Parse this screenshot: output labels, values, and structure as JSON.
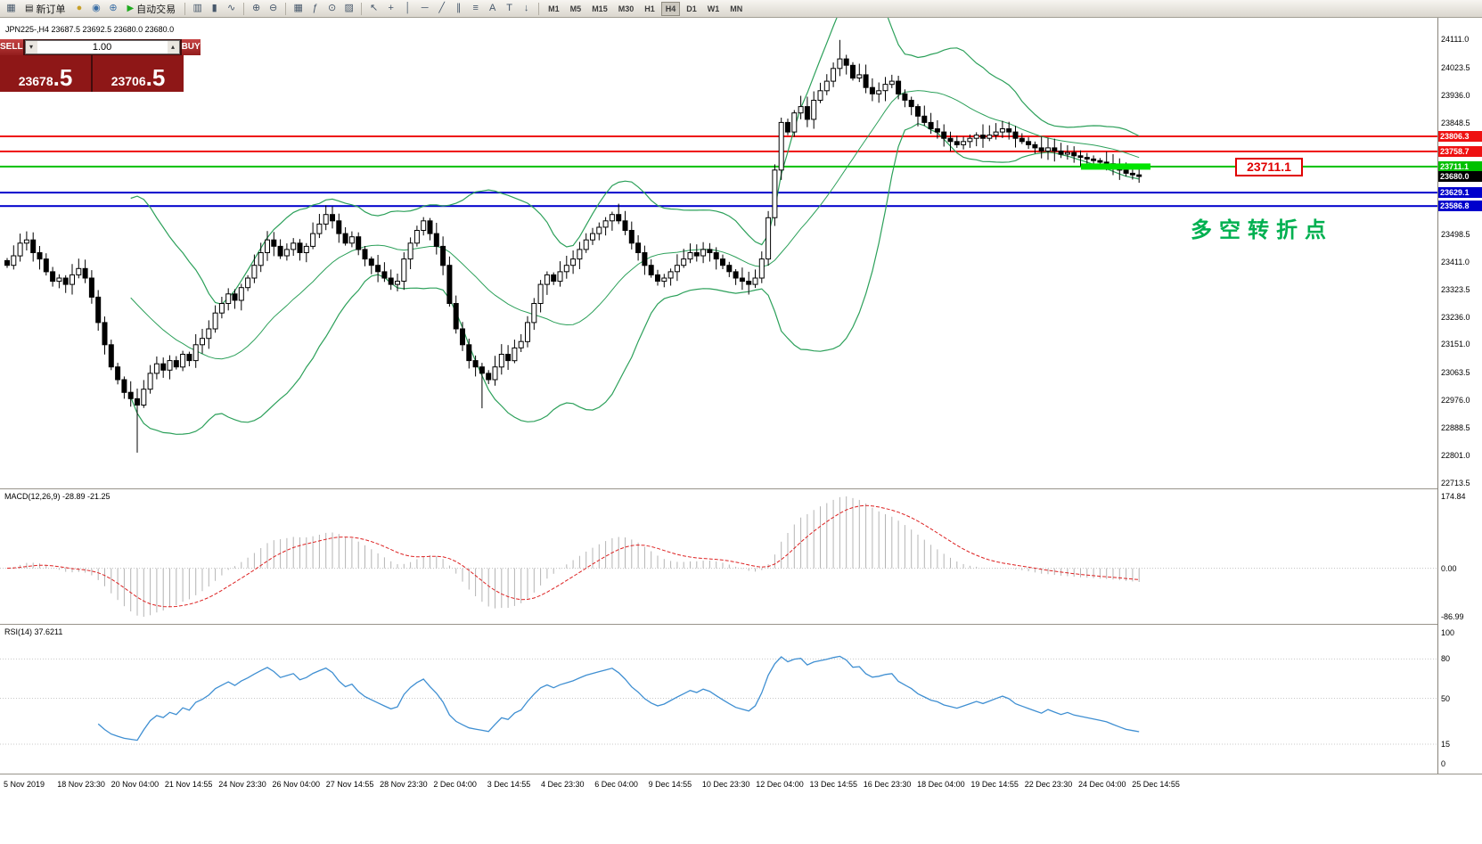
{
  "toolbar": {
    "items": [
      {
        "type": "icon",
        "name": "market-watch-icon",
        "glyph": "▦"
      },
      {
        "type": "button",
        "name": "new-order-button",
        "glyph": "▤",
        "label": "新订单"
      },
      {
        "type": "icon",
        "name": "history-center-icon",
        "glyph": "●",
        "glyph_color": "#c8a028"
      },
      {
        "type": "icon",
        "name": "profile-icon",
        "glyph": "◉",
        "glyph_color": "#3a6ea5"
      },
      {
        "type": "icon",
        "name": "community-icon",
        "glyph": "⊕",
        "glyph_color": "#3a6ea5"
      },
      {
        "type": "button",
        "name": "autotrade-button",
        "glyph": "▶",
        "glyph_color": "#1faa1f",
        "label": "自动交易"
      },
      {
        "type": "sep"
      },
      {
        "type": "icon",
        "name": "bar-chart-icon",
        "glyph": "▥"
      },
      {
        "type": "icon",
        "name": "candlestick-chart-icon",
        "glyph": "▮"
      },
      {
        "type": "icon",
        "name": "line-chart-icon",
        "glyph": "∿"
      },
      {
        "type": "sep"
      },
      {
        "type": "icon",
        "name": "zoom-in-icon",
        "glyph": "⊕"
      },
      {
        "type": "icon",
        "name": "zoom-out-icon",
        "glyph": "⊖"
      },
      {
        "type": "sep"
      },
      {
        "type": "icon",
        "name": "tile-windows-icon",
        "glyph": "▦"
      },
      {
        "type": "icon",
        "name": "indicators-icon",
        "glyph": "ƒ"
      },
      {
        "type": "icon",
        "name": "periods-icon",
        "glyph": "⊙"
      },
      {
        "type": "icon",
        "name": "templates-icon",
        "glyph": "▨"
      },
      {
        "type": "sep"
      },
      {
        "type": "icon",
        "name": "cursor-icon",
        "glyph": "↖"
      },
      {
        "type": "icon",
        "name": "crosshair-icon",
        "glyph": "+"
      },
      {
        "type": "icon",
        "name": "vertical-line-icon",
        "glyph": "│"
      },
      {
        "type": "icon",
        "name": "horizontal-line-icon",
        "glyph": "─"
      },
      {
        "type": "icon",
        "name": "trendline-icon",
        "glyph": "╱"
      },
      {
        "type": "icon",
        "name": "equidistant-channel-icon",
        "glyph": "∥"
      },
      {
        "type": "icon",
        "name": "fibonacci-icon",
        "glyph": "≡"
      },
      {
        "type": "icon",
        "name": "text-icon",
        "glyph": "A"
      },
      {
        "type": "icon",
        "name": "text-label-icon",
        "glyph": "T"
      },
      {
        "type": "icon",
        "name": "arrows-icon",
        "glyph": "↓"
      },
      {
        "type": "sep"
      }
    ],
    "timeframes": [
      "M1",
      "M5",
      "M15",
      "M30",
      "H1",
      "H4",
      "D1",
      "W1",
      "MN"
    ],
    "active_timeframe": "H4"
  },
  "chart_header": {
    "text": "JPN225-,H4  23687.5 23692.5 23680.0 23680.0"
  },
  "trade_panel": {
    "sell_label": "SELL",
    "buy_label": "BUY",
    "volume": "1.00",
    "vol_down_glyph": "▾",
    "vol_up_glyph": "▴",
    "sell_price_main": "23678",
    "sell_price_big": ".5",
    "buy_price_main": "23706",
    "buy_price_big": ".5"
  },
  "levels": [
    {
      "label": "23806.3",
      "price": 23806.3,
      "color": "#ee1111"
    },
    {
      "label": "23758.7",
      "price": 23758.7,
      "color": "#ee1111"
    },
    {
      "label": "23711.1",
      "price": 23711.1,
      "color": "#00c000"
    },
    {
      "label": "23629.1",
      "price": 23629.1,
      "color": "#0000cc"
    },
    {
      "label": "23586.8",
      "price": 23586.8,
      "color": "#0000cc"
    }
  ],
  "current_price": {
    "label": "23680.0",
    "price": 23680.0,
    "color": "#000000"
  },
  "callout": {
    "text": "23711.1",
    "price": 23711.1
  },
  "annotation": {
    "text": "多空转折点"
  },
  "price_axis": {
    "labels": [
      24111.0,
      24023.5,
      23936.0,
      23848.5,
      23498.5,
      23411.0,
      23323.5,
      23236.0,
      23151.0,
      23063.5,
      22976.0,
      22888.5,
      22801.0,
      22713.5
    ]
  },
  "macd_panel": {
    "title": "MACD(12,26,9) -28.89 -21.25",
    "axis": [
      "174.84",
      "0.00",
      "-86.99"
    ]
  },
  "rsi_panel": {
    "title": "RSI(14) 37.6211",
    "axis": [
      100,
      80,
      50,
      15,
      0
    ],
    "levels": [
      80,
      50,
      15
    ]
  },
  "time_axis": [
    "5 Nov 2019",
    "18 Nov 23:30",
    "20 Nov 04:00",
    "21 Nov 14:55",
    "24 Nov 23:30",
    "26 Nov 04:00",
    "27 Nov 14:55",
    "28 Nov 23:30",
    "2 Dec 04:00",
    "3 Dec 14:55",
    "4 Dec 23:30",
    "6 Dec 04:00",
    "9 Dec 14:55",
    "10 Dec 23:30",
    "12 Dec 04:00",
    "13 Dec 14:55",
    "16 Dec 23:30",
    "18 Dec 04:00",
    "19 Dec 14:55",
    "22 Dec 23:30",
    "24 Dec 04:00",
    "25 Dec 14:55"
  ],
  "colors": {
    "bollinger": "#2ca05a",
    "highlight_green": "#00e400",
    "macd_histogram": "#b4b4b4",
    "macd_signal": "#dd2222",
    "rsi_line": "#3f8fd2",
    "candle_up": "#ffffff",
    "candle_down": "#000000",
    "candle_border": "#000000"
  },
  "chart_data": {
    "type": "candlestick",
    "symbol": "JPN225-",
    "timeframe": "H4",
    "ohlc_header": [
      23687.5,
      23692.5,
      23680.0,
      23680.0
    ],
    "y_axis_range": [
      22713.5,
      24111.0
    ],
    "horizontal_levels": [
      23806.3,
      23758.7,
      23711.1,
      23629.1,
      23586.8
    ],
    "current_price": 23680.0,
    "closes": [
      23400,
      23430,
      23470,
      23480,
      23440,
      23420,
      23380,
      23350,
      23360,
      23340,
      23370,
      23390,
      23360,
      23300,
      23220,
      23150,
      23080,
      23040,
      23000,
      22980,
      22960,
      23010,
      23060,
      23090,
      23070,
      23100,
      23080,
      23120,
      23100,
      23150,
      23170,
      23200,
      23250,
      23280,
      23310,
      23290,
      23330,
      23360,
      23400,
      23440,
      23480,
      23460,
      23430,
      23450,
      23470,
      23440,
      23460,
      23500,
      23530,
      23560,
      23540,
      23500,
      23470,
      23490,
      23450,
      23420,
      23400,
      23380,
      23360,
      23340,
      23350,
      23420,
      23470,
      23510,
      23540,
      23500,
      23460,
      23400,
      23280,
      23200,
      23150,
      23100,
      23080,
      23060,
      23040,
      23080,
      23120,
      23100,
      23140,
      23160,
      23220,
      23280,
      23340,
      23370,
      23350,
      23380,
      23400,
      23420,
      23450,
      23480,
      23500,
      23520,
      23540,
      23560,
      23540,
      23510,
      23470,
      23440,
      23400,
      23370,
      23350,
      23360,
      23380,
      23400,
      23420,
      23440,
      23430,
      23450,
      23440,
      23420,
      23400,
      23380,
      23360,
      23350,
      23340,
      23360,
      23420,
      23550,
      23700,
      23850,
      23820,
      23880,
      23900,
      23860,
      23920,
      23950,
      23980,
      24020,
      24050,
      24030,
      23990,
      24000,
      23960,
      23940,
      23950,
      23970,
      23980,
      23940,
      23920,
      23900,
      23870,
      23850,
      23830,
      23820,
      23800,
      23790,
      23780,
      23790,
      23800,
      23810,
      23800,
      23810,
      23820,
      23830,
      23820,
      23800,
      23790,
      23780,
      23770,
      23760,
      23770,
      23760,
      23750,
      23755,
      23745,
      23740,
      23735,
      23730,
      23725,
      23720,
      23710,
      23700,
      23690,
      23685,
      23680
    ],
    "wicks": [
      {
        "i": 20,
        "low": 22810
      },
      {
        "i": 73,
        "low": 22950
      },
      {
        "i": 128,
        "high": 24110
      }
    ],
    "overlays": {
      "bollinger_period": 20,
      "bollinger_deviation": 2
    },
    "indicators": [
      {
        "type": "macd",
        "params": "12,26,9",
        "values_label": "-28.89 -21.25",
        "axis_max": 174.84,
        "axis_min": -86.99
      },
      {
        "type": "rsi",
        "params": "14",
        "value": 37.6211,
        "levels": [
          80,
          50,
          15
        ]
      }
    ]
  }
}
